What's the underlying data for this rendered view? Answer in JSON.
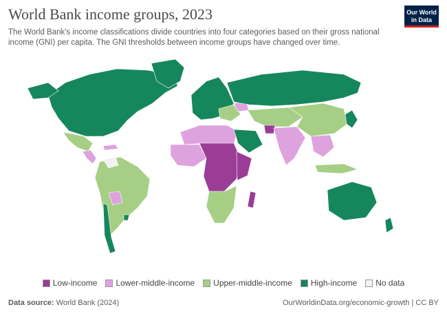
{
  "title": "World Bank income groups, 2023",
  "subtitle": "The World Bank's income classifications divide countries into four categories based on their gross national income (GNI) per capita. The GNI thresholds between income groups have changed over time.",
  "logo": {
    "line1": "Our World",
    "line2": "in Data"
  },
  "legend": {
    "items": [
      {
        "label": "Low-income",
        "color": "#9b3d97"
      },
      {
        "label": "Lower-middle-income",
        "color": "#dea2de"
      },
      {
        "label": "Upper-middle-income",
        "color": "#a6cf85"
      },
      {
        "label": "High-income",
        "color": "#16875c"
      },
      {
        "label": "No data",
        "color": "#f2f2f2"
      }
    ]
  },
  "footer": {
    "source_label": "Data source:",
    "source_value": "World Bank (2024)",
    "url": "OurWorldinData.org/economic-growth | CC BY"
  },
  "colors": {
    "low": "#9b3d97",
    "lower_middle": "#dea2de",
    "upper_middle": "#a6cf85",
    "high": "#16875c",
    "no_data": "#f2f2f2"
  },
  "regions": [
    {
      "name": "north-america-canada-usa",
      "group": "high"
    },
    {
      "name": "greenland",
      "group": "high"
    },
    {
      "name": "mexico",
      "group": "upper_middle"
    },
    {
      "name": "central-america",
      "group": "lower_middle"
    },
    {
      "name": "south-america",
      "group": "upper_middle"
    },
    {
      "name": "bolivia",
      "group": "lower_middle"
    },
    {
      "name": "chile-uruguay",
      "group": "high"
    },
    {
      "name": "venezuela",
      "group": "no_data"
    },
    {
      "name": "europe",
      "group": "high"
    },
    {
      "name": "russia",
      "group": "high"
    },
    {
      "name": "eastern-europe-balkans",
      "group": "upper_middle"
    },
    {
      "name": "ukraine",
      "group": "lower_middle"
    },
    {
      "name": "north-africa",
      "group": "lower_middle"
    },
    {
      "name": "sahel-central-africa",
      "group": "low"
    },
    {
      "name": "west-africa",
      "group": "lower_middle"
    },
    {
      "name": "southern-africa",
      "group": "upper_middle"
    },
    {
      "name": "east-africa",
      "group": "low"
    },
    {
      "name": "arabian-peninsula",
      "group": "high"
    },
    {
      "name": "central-asia-iran",
      "group": "upper_middle"
    },
    {
      "name": "afghanistan",
      "group": "low"
    },
    {
      "name": "south-asia",
      "group": "lower_middle"
    },
    {
      "name": "china",
      "group": "upper_middle"
    },
    {
      "name": "southeast-asia",
      "group": "lower_middle"
    },
    {
      "name": "korea-japan",
      "group": "high"
    },
    {
      "name": "australia-nz",
      "group": "high"
    },
    {
      "name": "madagascar",
      "group": "low"
    },
    {
      "name": "indonesia",
      "group": "upper_middle"
    }
  ]
}
